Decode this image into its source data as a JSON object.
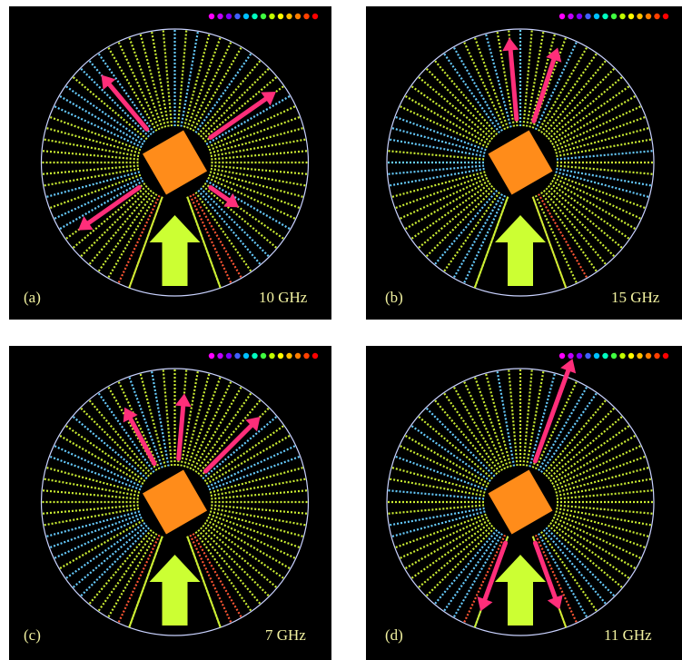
{
  "panels": [
    {
      "label": "(a)",
      "freq": "10 GHz",
      "rotation": -30,
      "arrows": [
        {
          "angle": -125,
          "len": 82
        },
        {
          "angle": -40,
          "len": 78
        },
        {
          "angle": 125,
          "len": 38
        },
        {
          "angle": 55,
          "len": 88
        }
      ]
    },
    {
      "label": "(b)",
      "freq": "15 GHz",
      "rotation": -30,
      "arrows": [
        {
          "angle": -5,
          "len": 90
        },
        {
          "angle": 18,
          "len": 85
        }
      ]
    },
    {
      "label": "(c)",
      "freq": "7 GHz",
      "rotation": -30,
      "arrows": [
        {
          "angle": -28,
          "len": 70
        },
        {
          "angle": 5,
          "len": 72
        },
        {
          "angle": 45,
          "len": 85
        }
      ]
    },
    {
      "label": "(d)",
      "freq": "11 GHz",
      "rotation": -30,
      "arrows": [
        {
          "angle": -160,
          "len": 80
        },
        {
          "angle": 160,
          "len": 78
        },
        {
          "angle": 20,
          "len": 120
        }
      ]
    }
  ],
  "colors": {
    "background": "#000000",
    "ring": "#c9d2ff",
    "ray_low": "#66ccff",
    "ray_mid": "#ccee33",
    "ray_high": "#ff5533",
    "scatterer": "#ff8c1a",
    "incident_arrow": "#ccff33",
    "scattered_arrow": "#ff2e7a",
    "label": "#f2f2a0"
  },
  "colorbar": [
    "#ff00ff",
    "#c000ff",
    "#8000ff",
    "#4060ff",
    "#00c0ff",
    "#00ffc0",
    "#40ff40",
    "#c0ff00",
    "#ffff00",
    "#ffc000",
    "#ff8000",
    "#ff4000",
    "#ff0000"
  ]
}
